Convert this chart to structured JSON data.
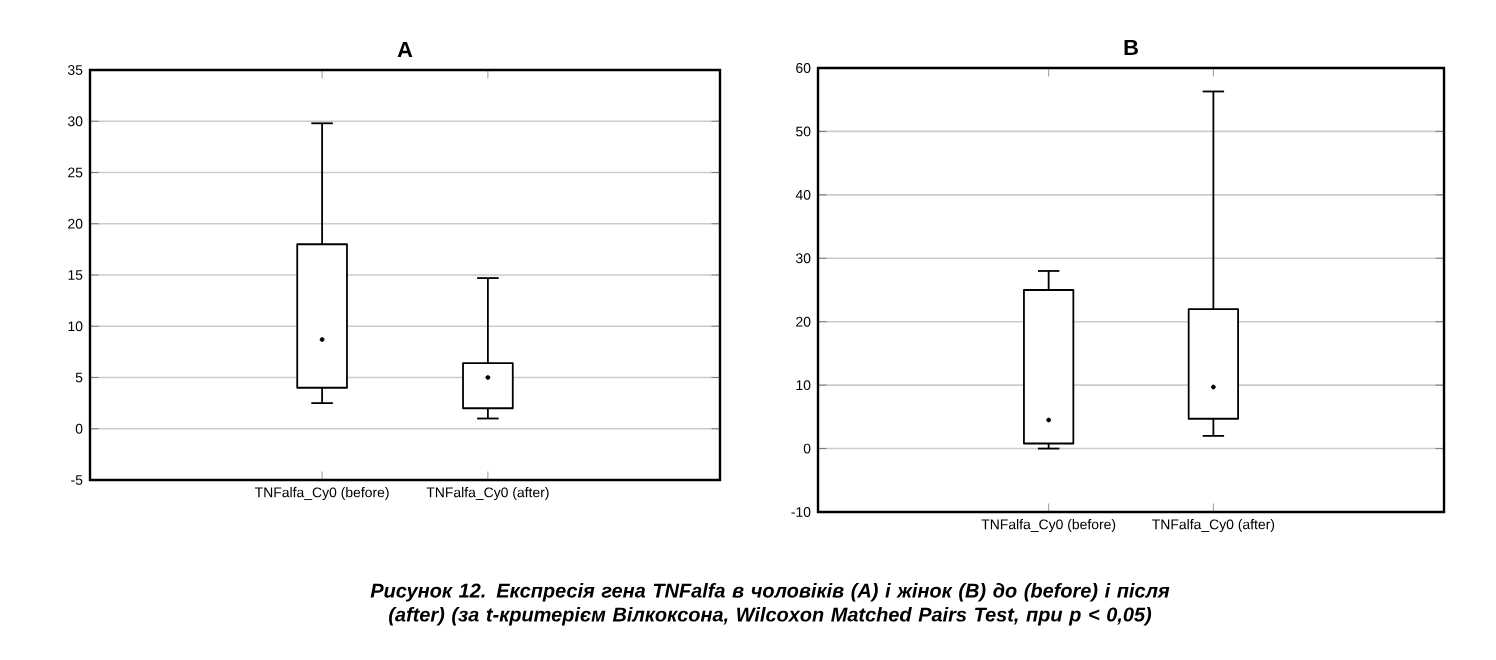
{
  "chart_data": [
    {
      "type": "box",
      "title": "A",
      "categories": [
        "TNFalfa_Cy0 (before)",
        "TNFalfa_Cy0 (after)"
      ],
      "ylim": [
        -5,
        35
      ],
      "yticks": [
        -5,
        0,
        5,
        10,
        15,
        20,
        25,
        30,
        35
      ],
      "grid": "y",
      "boxes": [
        {
          "low": 2.5,
          "q1": 4,
          "median": 8.7,
          "q3": 18,
          "high": 29.8
        },
        {
          "low": 1,
          "q1": 2,
          "median": 5,
          "q3": 6.4,
          "high": 14.7
        }
      ],
      "annotations": [
        "Рисунок 12. Експресія гена TNFalfa в чоловіків (A) і жінок (B) до (before) і після (after) (за t-критерієм Вілкоксона, Wilcoxon Matched Pairs Test, при p < 0,05)"
      ]
    },
    {
      "type": "box",
      "title": "B",
      "categories": [
        "TNFalfa_Cy0 (before)",
        "TNFalfa_Cy0 (after)"
      ],
      "ylim": [
        -10,
        60
      ],
      "yticks": [
        -10,
        0,
        10,
        20,
        30,
        40,
        50,
        60
      ],
      "grid": "y",
      "boxes": [
        {
          "low": 0,
          "q1": 0.8,
          "median": 4.5,
          "q3": 25,
          "high": 28
        },
        {
          "low": 2,
          "q1": 4.7,
          "median": 9.7,
          "q3": 22,
          "high": 56.3
        }
      ]
    }
  ]
}
